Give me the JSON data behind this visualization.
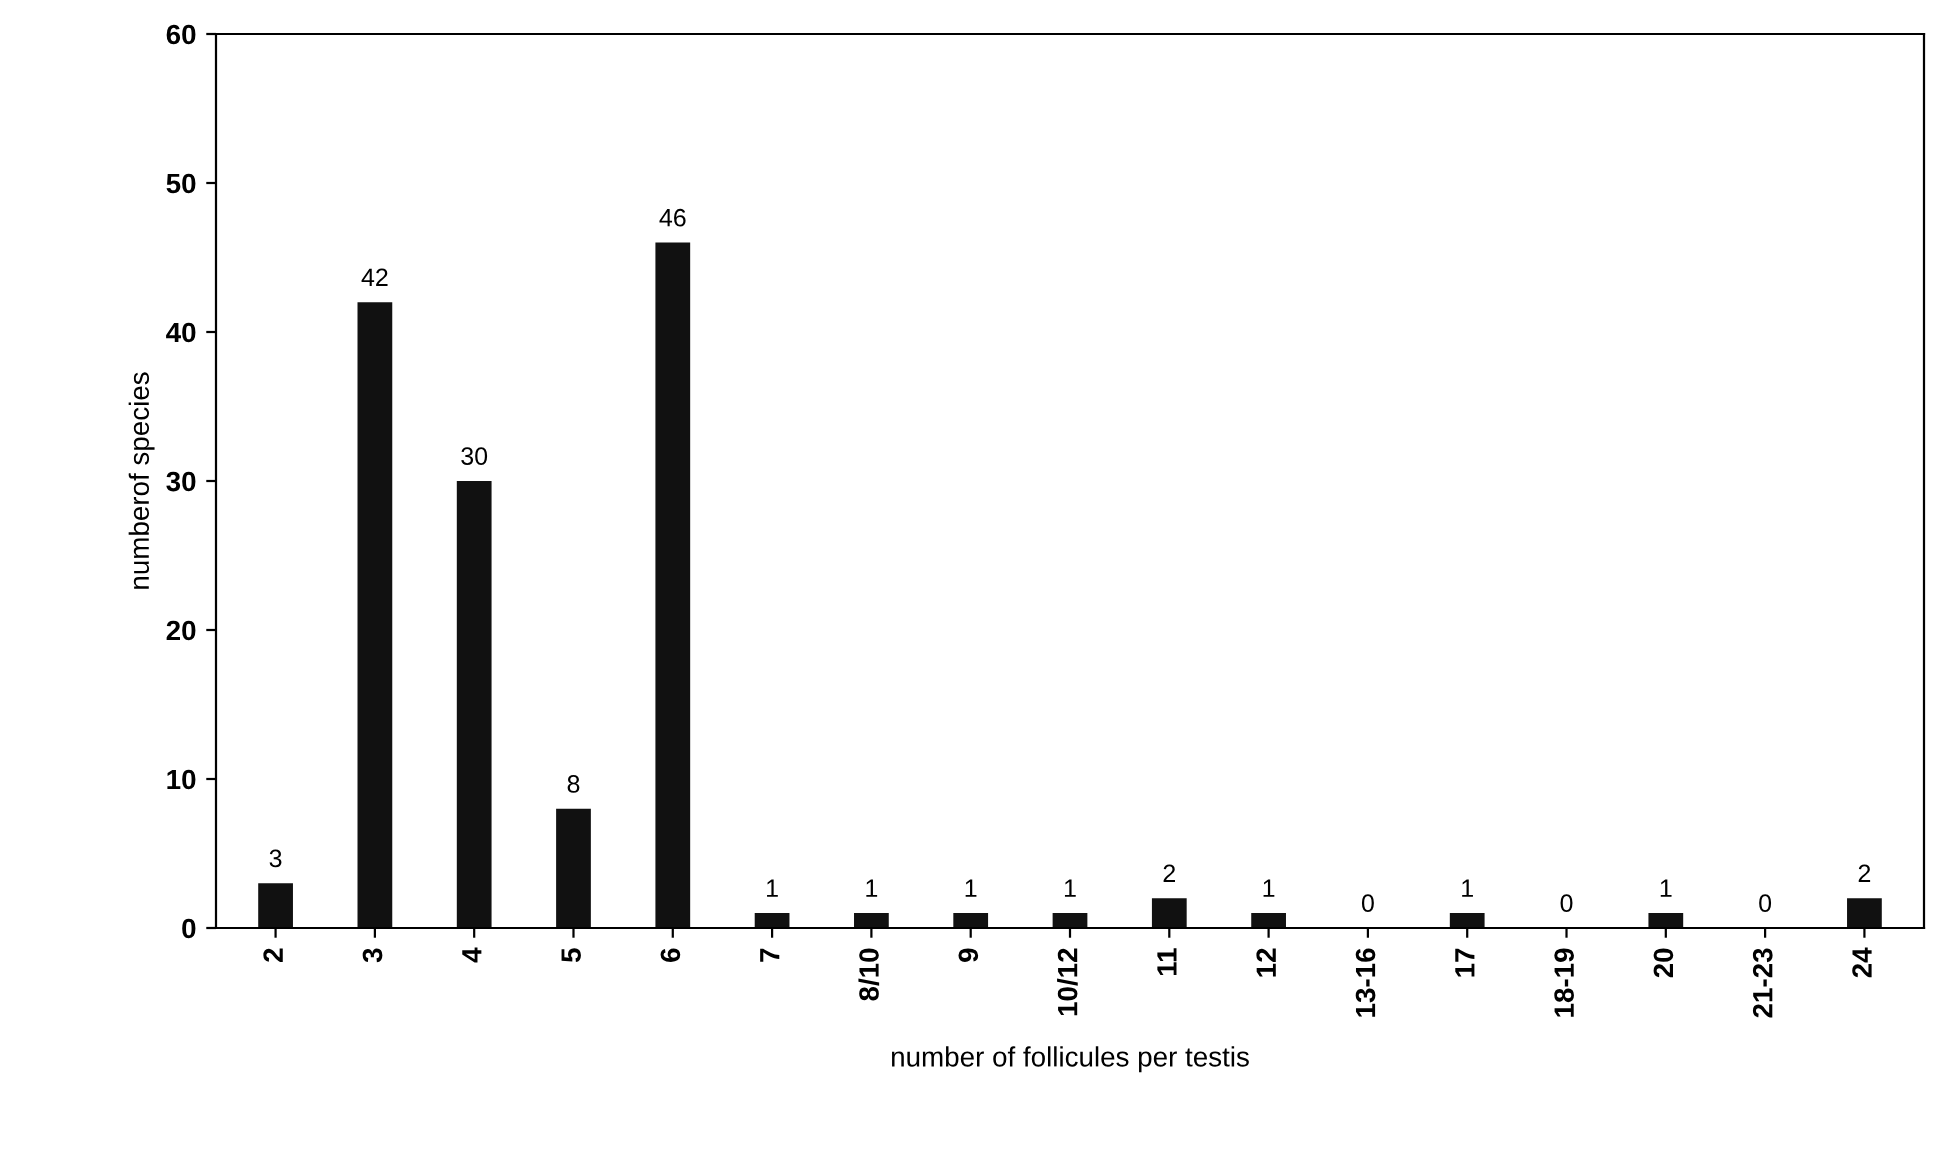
{
  "chart_data": {
    "type": "bar",
    "xlabel": "number of follicules per testis",
    "ylabel": "numberof species",
    "categories": [
      "2",
      "3",
      "4",
      "5",
      "6",
      "7",
      "8/10",
      "9",
      "10/12",
      "11",
      "12",
      "13-16",
      "17",
      "18-19",
      "20",
      "21-23",
      "24"
    ],
    "values": [
      3,
      42,
      30,
      8,
      46,
      1,
      1,
      1,
      1,
      2,
      1,
      0,
      1,
      0,
      1,
      0,
      2
    ],
    "color": "#111111",
    "ylim": [
      0,
      60
    ],
    "yticks": [
      0,
      10,
      20,
      30,
      40,
      50,
      60
    ],
    "data_labels": true,
    "grid": false,
    "legend": false
  }
}
